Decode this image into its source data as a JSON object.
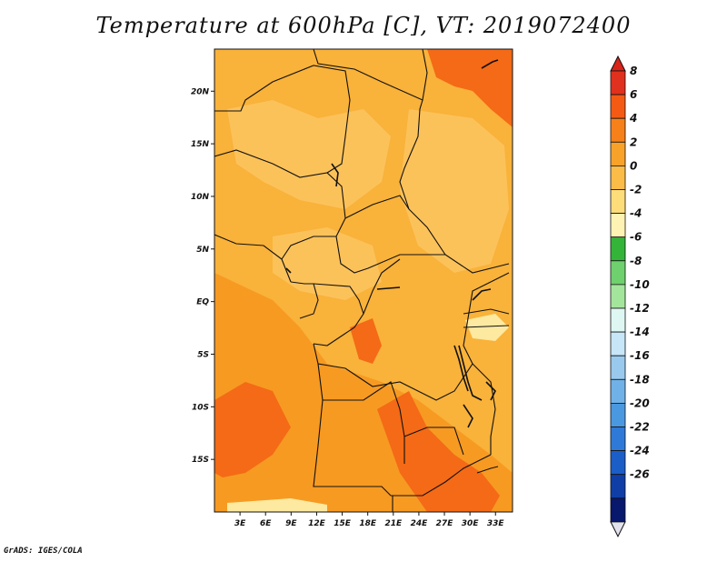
{
  "title": "Temperature at 600hPa [C], VT: 2019072400",
  "credit": "GrADS: IGES/COLA",
  "map": {
    "lon_range": [
      0,
      35
    ],
    "lat_range": [
      -20,
      24
    ],
    "x_ticks": [
      {
        "value": 3,
        "label": "3E"
      },
      {
        "value": 6,
        "label": "6E"
      },
      {
        "value": 9,
        "label": "9E"
      },
      {
        "value": 12,
        "label": "12E"
      },
      {
        "value": 15,
        "label": "15E"
      },
      {
        "value": 18,
        "label": "18E"
      },
      {
        "value": 21,
        "label": "21E"
      },
      {
        "value": 24,
        "label": "24E"
      },
      {
        "value": 27,
        "label": "27E"
      },
      {
        "value": 30,
        "label": "30E"
      },
      {
        "value": 33,
        "label": "33E"
      }
    ],
    "y_ticks": [
      {
        "value": 20,
        "label": "20N"
      },
      {
        "value": 15,
        "label": "15N"
      },
      {
        "value": 10,
        "label": "10N"
      },
      {
        "value": 5,
        "label": "5N"
      },
      {
        "value": 0,
        "label": "EQ"
      },
      {
        "value": -5,
        "label": "5S"
      },
      {
        "value": -10,
        "label": "10S"
      },
      {
        "value": -15,
        "label": "15S"
      }
    ],
    "field_colors": {
      "base": "#f9b23a",
      "warm": "#f79a22",
      "hot": "#f46a16",
      "cool": "#fcc25a",
      "pale": "#fde9a0"
    }
  },
  "colorbar": {
    "levels": [
      "8",
      "6",
      "4",
      "2",
      "0",
      "-2",
      "-4",
      "-6",
      "-8",
      "-10",
      "-12",
      "-14",
      "-16",
      "-18",
      "-20",
      "-22",
      "-24",
      "-26"
    ],
    "colors": [
      "#e0301e",
      "#f45a14",
      "#f6801a",
      "#f8a22a",
      "#fbbc48",
      "#fddc7a",
      "#fff3b3",
      "#34b53a",
      "#6fd06e",
      "#a4e59c",
      "#dff7f2",
      "#c7e6f7",
      "#99caee",
      "#70b2e8",
      "#4a98e0",
      "#2f7ad8",
      "#1c5ec8",
      "#0f3fa6",
      "#08186c"
    ],
    "top_triangle_color": "#d9241a",
    "bottom_triangle_color": "#e3e3ee"
  }
}
